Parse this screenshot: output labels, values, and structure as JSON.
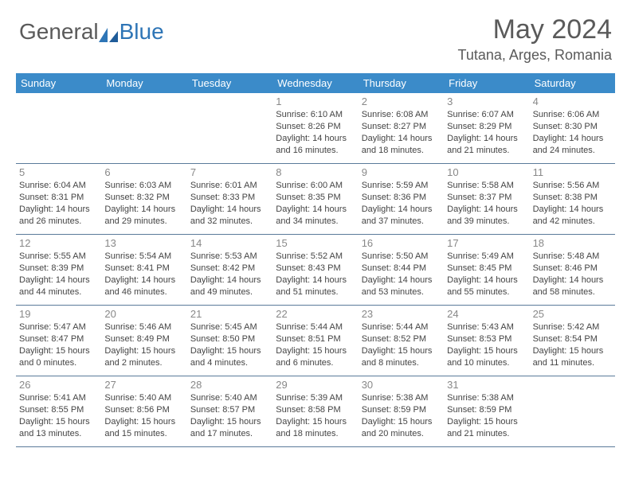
{
  "logo": {
    "part1": "General",
    "part2": "Blue"
  },
  "title": "May 2024",
  "location": "Tutana, Arges, Romania",
  "dayNames": [
    "Sunday",
    "Monday",
    "Tuesday",
    "Wednesday",
    "Thursday",
    "Friday",
    "Saturday"
  ],
  "colors": {
    "header_bg": "#3b8bc9",
    "header_text": "#ffffff",
    "rule": "#5a7a9a",
    "daynum": "#888888",
    "body_text": "#444444",
    "logo_gray": "#5a5a5a",
    "logo_blue": "#2e75b6"
  },
  "typography": {
    "title_fontsize": 34,
    "location_fontsize": 18,
    "dayhead_fontsize": 13,
    "daynum_fontsize": 13,
    "info_fontsize": 11
  },
  "weeks": [
    [
      {
        "day": "",
        "lines": []
      },
      {
        "day": "",
        "lines": []
      },
      {
        "day": "",
        "lines": []
      },
      {
        "day": "1",
        "lines": [
          "Sunrise: 6:10 AM",
          "Sunset: 8:26 PM",
          "Daylight: 14 hours",
          "and 16 minutes."
        ]
      },
      {
        "day": "2",
        "lines": [
          "Sunrise: 6:08 AM",
          "Sunset: 8:27 PM",
          "Daylight: 14 hours",
          "and 18 minutes."
        ]
      },
      {
        "day": "3",
        "lines": [
          "Sunrise: 6:07 AM",
          "Sunset: 8:29 PM",
          "Daylight: 14 hours",
          "and 21 minutes."
        ]
      },
      {
        "day": "4",
        "lines": [
          "Sunrise: 6:06 AM",
          "Sunset: 8:30 PM",
          "Daylight: 14 hours",
          "and 24 minutes."
        ]
      }
    ],
    [
      {
        "day": "5",
        "lines": [
          "Sunrise: 6:04 AM",
          "Sunset: 8:31 PM",
          "Daylight: 14 hours",
          "and 26 minutes."
        ]
      },
      {
        "day": "6",
        "lines": [
          "Sunrise: 6:03 AM",
          "Sunset: 8:32 PM",
          "Daylight: 14 hours",
          "and 29 minutes."
        ]
      },
      {
        "day": "7",
        "lines": [
          "Sunrise: 6:01 AM",
          "Sunset: 8:33 PM",
          "Daylight: 14 hours",
          "and 32 minutes."
        ]
      },
      {
        "day": "8",
        "lines": [
          "Sunrise: 6:00 AM",
          "Sunset: 8:35 PM",
          "Daylight: 14 hours",
          "and 34 minutes."
        ]
      },
      {
        "day": "9",
        "lines": [
          "Sunrise: 5:59 AM",
          "Sunset: 8:36 PM",
          "Daylight: 14 hours",
          "and 37 minutes."
        ]
      },
      {
        "day": "10",
        "lines": [
          "Sunrise: 5:58 AM",
          "Sunset: 8:37 PM",
          "Daylight: 14 hours",
          "and 39 minutes."
        ]
      },
      {
        "day": "11",
        "lines": [
          "Sunrise: 5:56 AM",
          "Sunset: 8:38 PM",
          "Daylight: 14 hours",
          "and 42 minutes."
        ]
      }
    ],
    [
      {
        "day": "12",
        "lines": [
          "Sunrise: 5:55 AM",
          "Sunset: 8:39 PM",
          "Daylight: 14 hours",
          "and 44 minutes."
        ]
      },
      {
        "day": "13",
        "lines": [
          "Sunrise: 5:54 AM",
          "Sunset: 8:41 PM",
          "Daylight: 14 hours",
          "and 46 minutes."
        ]
      },
      {
        "day": "14",
        "lines": [
          "Sunrise: 5:53 AM",
          "Sunset: 8:42 PM",
          "Daylight: 14 hours",
          "and 49 minutes."
        ]
      },
      {
        "day": "15",
        "lines": [
          "Sunrise: 5:52 AM",
          "Sunset: 8:43 PM",
          "Daylight: 14 hours",
          "and 51 minutes."
        ]
      },
      {
        "day": "16",
        "lines": [
          "Sunrise: 5:50 AM",
          "Sunset: 8:44 PM",
          "Daylight: 14 hours",
          "and 53 minutes."
        ]
      },
      {
        "day": "17",
        "lines": [
          "Sunrise: 5:49 AM",
          "Sunset: 8:45 PM",
          "Daylight: 14 hours",
          "and 55 minutes."
        ]
      },
      {
        "day": "18",
        "lines": [
          "Sunrise: 5:48 AM",
          "Sunset: 8:46 PM",
          "Daylight: 14 hours",
          "and 58 minutes."
        ]
      }
    ],
    [
      {
        "day": "19",
        "lines": [
          "Sunrise: 5:47 AM",
          "Sunset: 8:47 PM",
          "Daylight: 15 hours",
          "and 0 minutes."
        ]
      },
      {
        "day": "20",
        "lines": [
          "Sunrise: 5:46 AM",
          "Sunset: 8:49 PM",
          "Daylight: 15 hours",
          "and 2 minutes."
        ]
      },
      {
        "day": "21",
        "lines": [
          "Sunrise: 5:45 AM",
          "Sunset: 8:50 PM",
          "Daylight: 15 hours",
          "and 4 minutes."
        ]
      },
      {
        "day": "22",
        "lines": [
          "Sunrise: 5:44 AM",
          "Sunset: 8:51 PM",
          "Daylight: 15 hours",
          "and 6 minutes."
        ]
      },
      {
        "day": "23",
        "lines": [
          "Sunrise: 5:44 AM",
          "Sunset: 8:52 PM",
          "Daylight: 15 hours",
          "and 8 minutes."
        ]
      },
      {
        "day": "24",
        "lines": [
          "Sunrise: 5:43 AM",
          "Sunset: 8:53 PM",
          "Daylight: 15 hours",
          "and 10 minutes."
        ]
      },
      {
        "day": "25",
        "lines": [
          "Sunrise: 5:42 AM",
          "Sunset: 8:54 PM",
          "Daylight: 15 hours",
          "and 11 minutes."
        ]
      }
    ],
    [
      {
        "day": "26",
        "lines": [
          "Sunrise: 5:41 AM",
          "Sunset: 8:55 PM",
          "Daylight: 15 hours",
          "and 13 minutes."
        ]
      },
      {
        "day": "27",
        "lines": [
          "Sunrise: 5:40 AM",
          "Sunset: 8:56 PM",
          "Daylight: 15 hours",
          "and 15 minutes."
        ]
      },
      {
        "day": "28",
        "lines": [
          "Sunrise: 5:40 AM",
          "Sunset: 8:57 PM",
          "Daylight: 15 hours",
          "and 17 minutes."
        ]
      },
      {
        "day": "29",
        "lines": [
          "Sunrise: 5:39 AM",
          "Sunset: 8:58 PM",
          "Daylight: 15 hours",
          "and 18 minutes."
        ]
      },
      {
        "day": "30",
        "lines": [
          "Sunrise: 5:38 AM",
          "Sunset: 8:59 PM",
          "Daylight: 15 hours",
          "and 20 minutes."
        ]
      },
      {
        "day": "31",
        "lines": [
          "Sunrise: 5:38 AM",
          "Sunset: 8:59 PM",
          "Daylight: 15 hours",
          "and 21 minutes."
        ]
      },
      {
        "day": "",
        "lines": []
      }
    ]
  ]
}
